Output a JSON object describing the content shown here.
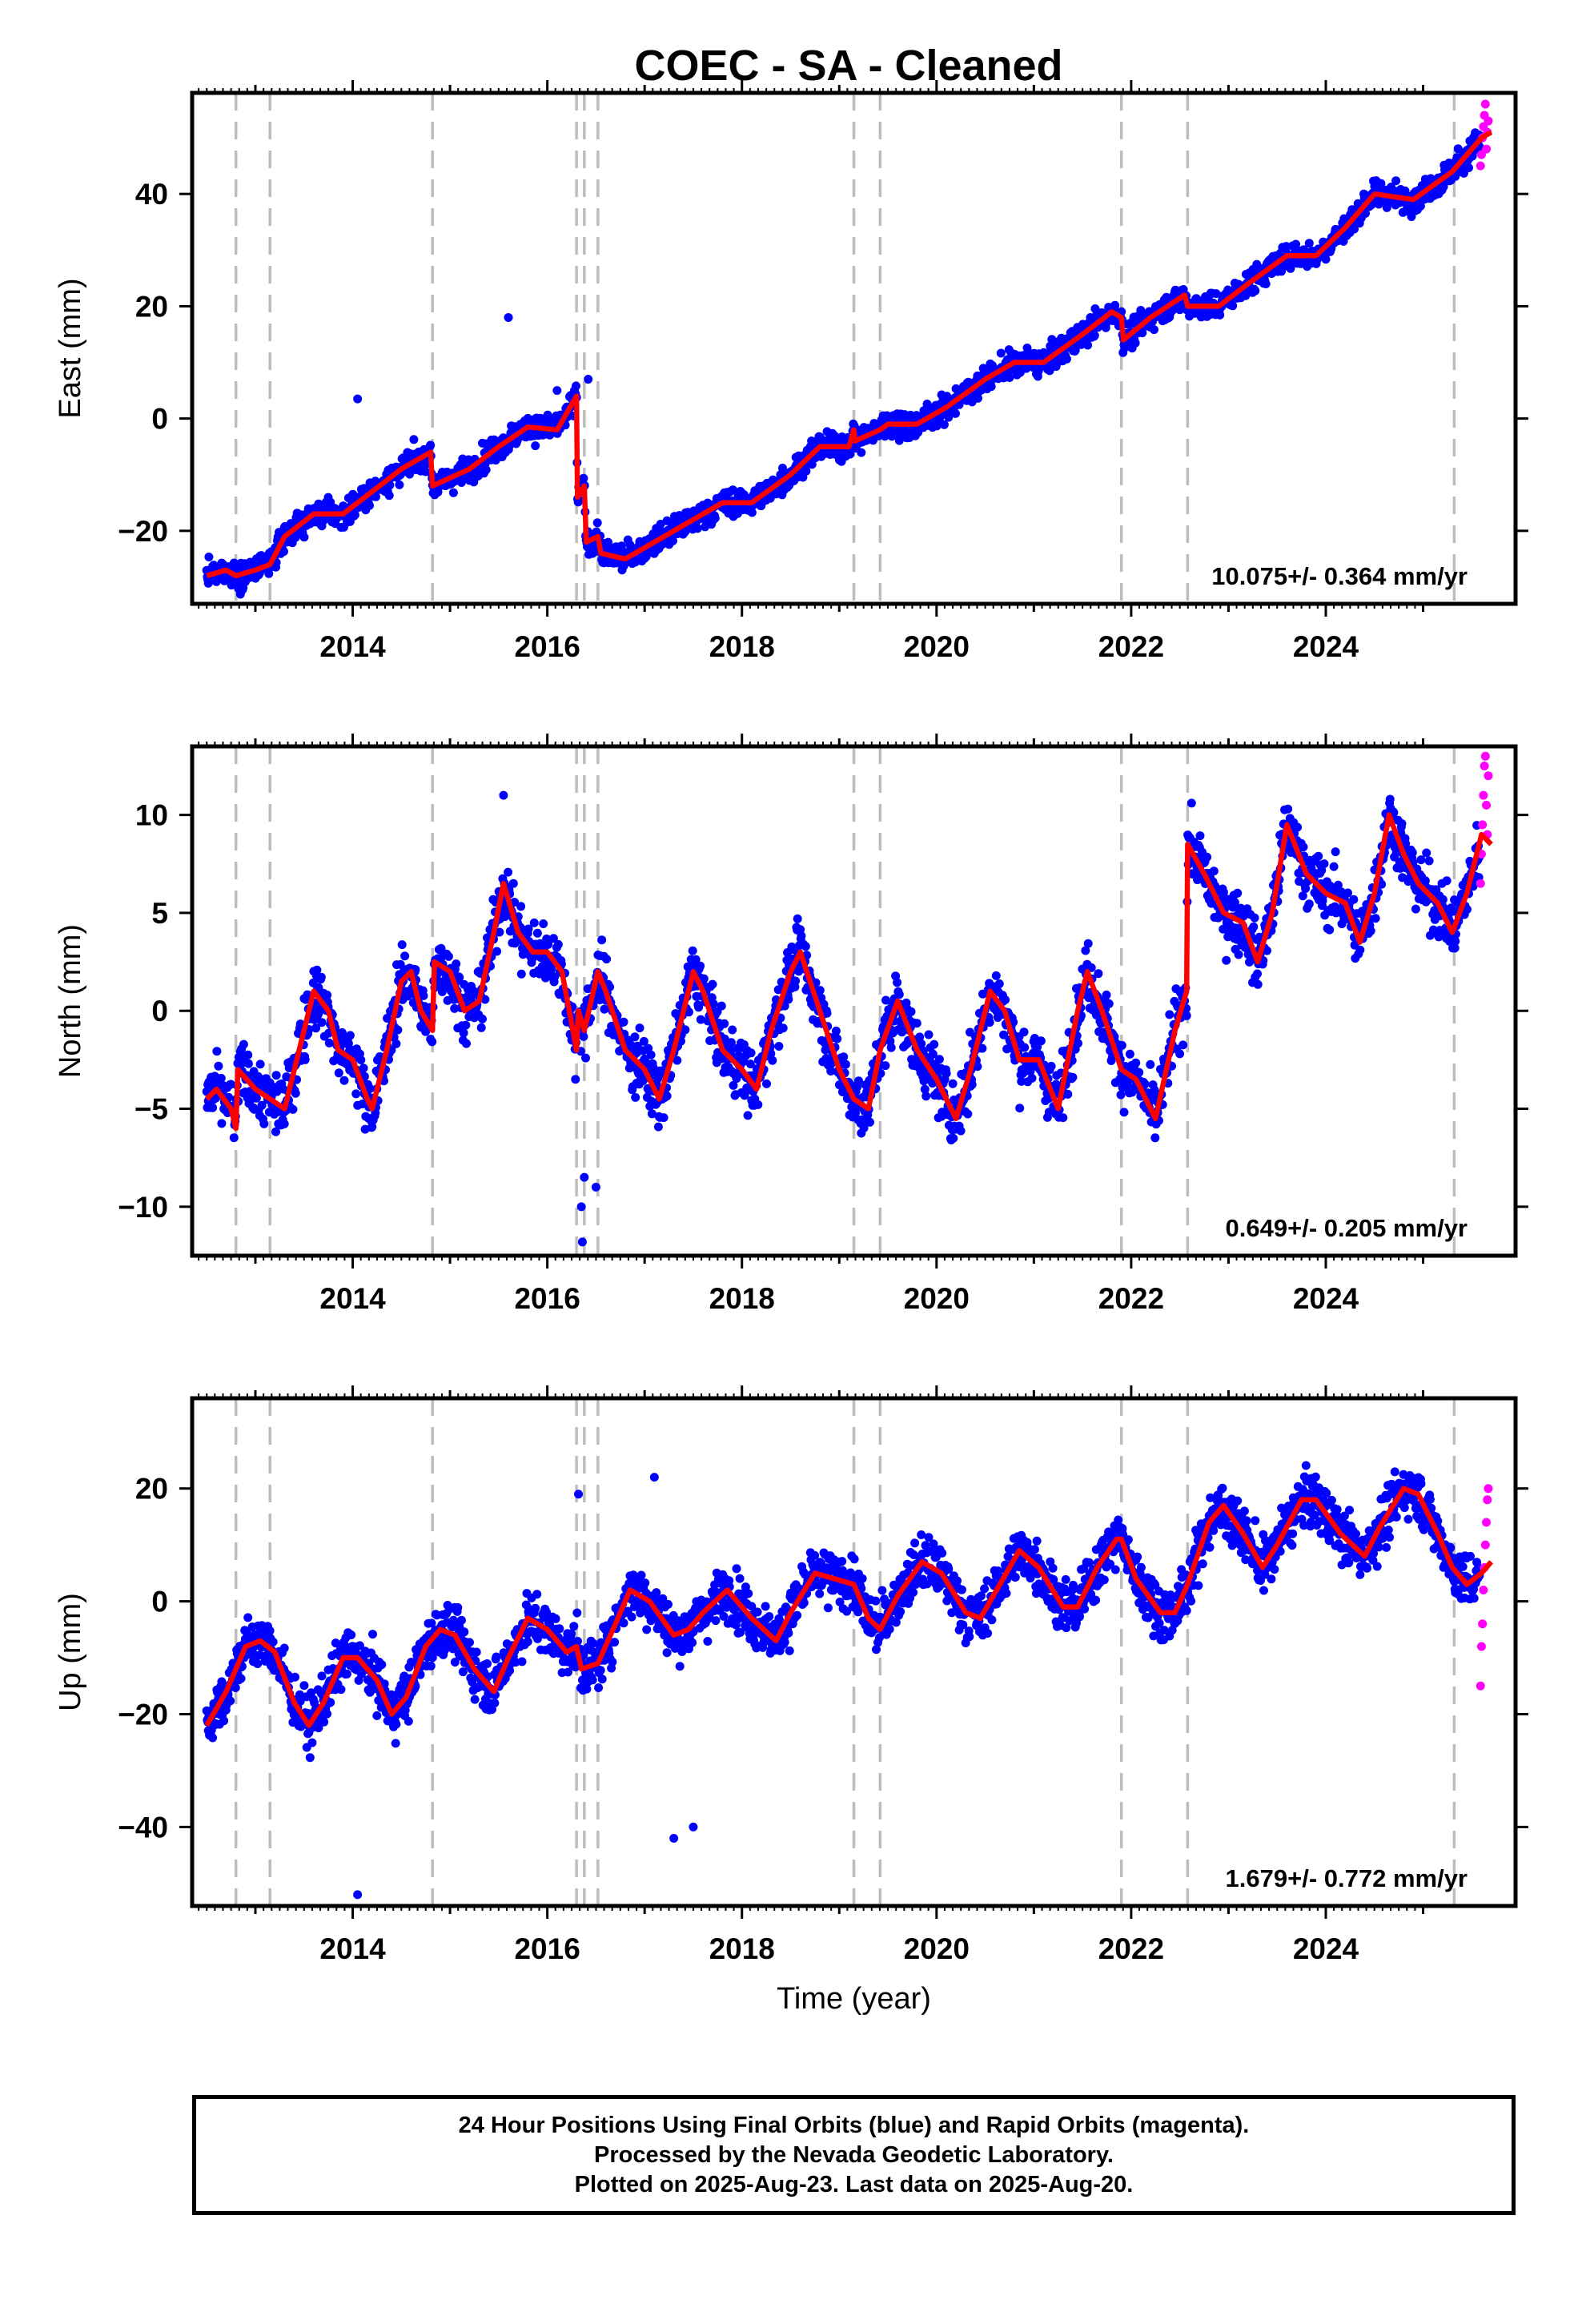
{
  "title": "COEC  - SA - Cleaned",
  "colors": {
    "final": "#0000ff",
    "rapid": "#ff00ff",
    "model": "#ff0000",
    "steps": "#bdbdbd"
  },
  "chart_data": [
    {
      "type": "scatter",
      "component": "East",
      "ylabel": "East (mm)",
      "xlabel": "",
      "xlim": [
        2012.35,
        2025.95
      ],
      "ylim": [
        -33,
        58
      ],
      "xticks": [
        2014,
        2016,
        2018,
        2020,
        2022,
        2024
      ],
      "yticks": [
        -20,
        0,
        20,
        40
      ],
      "rate_label": "10.075+/- 0.364 mm/yr",
      "step_epochs": [
        2012.8,
        2013.15,
        2014.82,
        2016.3,
        2016.38,
        2016.52,
        2019.15,
        2019.42,
        2021.9,
        2022.58,
        2025.32
      ],
      "model": [
        [
          2012.5,
          -28
        ],
        [
          2012.7,
          -27
        ],
        [
          2012.8,
          -28
        ],
        [
          2013.0,
          -27
        ],
        [
          2013.15,
          -26
        ],
        [
          2013.3,
          -21
        ],
        [
          2013.6,
          -17
        ],
        [
          2013.9,
          -17
        ],
        [
          2014.2,
          -13
        ],
        [
          2014.5,
          -9
        ],
        [
          2014.8,
          -6
        ],
        [
          2014.82,
          -12
        ],
        [
          2015.2,
          -9
        ],
        [
          2015.5,
          -5
        ],
        [
          2015.8,
          -1.5
        ],
        [
          2016.1,
          -2
        ],
        [
          2016.3,
          4
        ],
        [
          2016.31,
          -14
        ],
        [
          2016.38,
          -12
        ],
        [
          2016.4,
          -22
        ],
        [
          2016.52,
          -21
        ],
        [
          2016.55,
          -24
        ],
        [
          2016.8,
          -25
        ],
        [
          2017.1,
          -22
        ],
        [
          2017.5,
          -18
        ],
        [
          2017.8,
          -15
        ],
        [
          2018.1,
          -15
        ],
        [
          2018.5,
          -10
        ],
        [
          2018.8,
          -5
        ],
        [
          2019.1,
          -5
        ],
        [
          2019.15,
          -2
        ],
        [
          2019.16,
          -4
        ],
        [
          2019.42,
          -2
        ],
        [
          2019.5,
          -1
        ],
        [
          2019.8,
          -1
        ],
        [
          2020.1,
          2
        ],
        [
          2020.5,
          7
        ],
        [
          2020.8,
          10
        ],
        [
          2021.1,
          10
        ],
        [
          2021.5,
          15
        ],
        [
          2021.8,
          19
        ],
        [
          2021.9,
          18
        ],
        [
          2021.92,
          14
        ],
        [
          2022.2,
          18
        ],
        [
          2022.55,
          22
        ],
        [
          2022.58,
          20
        ],
        [
          2022.9,
          20
        ],
        [
          2023.2,
          24
        ],
        [
          2023.6,
          29
        ],
        [
          2023.9,
          29
        ],
        [
          2024.2,
          34
        ],
        [
          2024.5,
          40
        ],
        [
          2024.9,
          39
        ],
        [
          2025.3,
          44
        ],
        [
          2025.6,
          50
        ],
        [
          2025.7,
          51
        ]
      ],
      "outliers": [
        [
          2014.05,
          3.5
        ],
        [
          2015.6,
          18
        ],
        [
          2016.1,
          5
        ],
        [
          2016.42,
          7
        ]
      ],
      "rapid": [
        [
          2025.59,
          45
        ],
        [
          2025.6,
          47
        ],
        [
          2025.61,
          50
        ],
        [
          2025.62,
          52
        ],
        [
          2025.63,
          54
        ],
        [
          2025.64,
          56
        ],
        [
          2025.65,
          48
        ],
        [
          2025.66,
          51
        ],
        [
          2025.67,
          53
        ]
      ]
    },
    {
      "type": "scatter",
      "component": "North",
      "ylabel": "North (mm)",
      "xlabel": "",
      "xlim": [
        2012.35,
        2025.95
      ],
      "ylim": [
        -12.5,
        13.5
      ],
      "xticks": [
        2014,
        2016,
        2018,
        2020,
        2022,
        2024
      ],
      "yticks": [
        -10,
        -5,
        0,
        5,
        10
      ],
      "rate_label": "0.649+/- 0.205 mm/yr",
      "step_epochs": [
        2012.8,
        2013.15,
        2014.82,
        2016.3,
        2016.38,
        2016.52,
        2019.15,
        2019.42,
        2021.9,
        2022.58,
        2025.32
      ],
      "model": [
        [
          2012.5,
          -4.5
        ],
        [
          2012.6,
          -4
        ],
        [
          2012.75,
          -5
        ],
        [
          2012.8,
          -6
        ],
        [
          2012.82,
          -3
        ],
        [
          2013.0,
          -4
        ],
        [
          2013.15,
          -4.5
        ],
        [
          2013.3,
          -5
        ],
        [
          2013.45,
          -2
        ],
        [
          2013.6,
          1
        ],
        [
          2013.75,
          0
        ],
        [
          2013.85,
          -2
        ],
        [
          2014.0,
          -2.5
        ],
        [
          2014.15,
          -4.5
        ],
        [
          2014.2,
          -5
        ],
        [
          2014.35,
          -2
        ],
        [
          2014.5,
          1.5
        ],
        [
          2014.6,
          2
        ],
        [
          2014.7,
          0
        ],
        [
          2014.82,
          -1
        ],
        [
          2014.84,
          2.5
        ],
        [
          2015.0,
          2
        ],
        [
          2015.15,
          0
        ],
        [
          2015.3,
          0.5
        ],
        [
          2015.45,
          4
        ],
        [
          2015.55,
          6.5
        ],
        [
          2015.7,
          4
        ],
        [
          2015.85,
          3
        ],
        [
          2016.0,
          3
        ],
        [
          2016.15,
          2
        ],
        [
          2016.3,
          -2
        ],
        [
          2016.32,
          0
        ],
        [
          2016.38,
          -1
        ],
        [
          2016.52,
          2
        ],
        [
          2016.6,
          1
        ],
        [
          2016.8,
          -2
        ],
        [
          2017.0,
          -3
        ],
        [
          2017.15,
          -4.5
        ],
        [
          2017.3,
          -2
        ],
        [
          2017.5,
          2
        ],
        [
          2017.6,
          1
        ],
        [
          2017.8,
          -2
        ],
        [
          2018.0,
          -3
        ],
        [
          2018.15,
          -4
        ],
        [
          2018.3,
          -1
        ],
        [
          2018.5,
          2
        ],
        [
          2018.6,
          3
        ],
        [
          2018.8,
          0
        ],
        [
          2019.0,
          -3
        ],
        [
          2019.15,
          -4.5
        ],
        [
          2019.3,
          -5
        ],
        [
          2019.42,
          -2
        ],
        [
          2019.6,
          0.5
        ],
        [
          2019.8,
          -2
        ],
        [
          2020.0,
          -3.5
        ],
        [
          2020.2,
          -5.5
        ],
        [
          2020.35,
          -3
        ],
        [
          2020.55,
          1
        ],
        [
          2020.7,
          0
        ],
        [
          2020.85,
          -2.5
        ],
        [
          2021.05,
          -2.5
        ],
        [
          2021.25,
          -5
        ],
        [
          2021.45,
          0
        ],
        [
          2021.55,
          2
        ],
        [
          2021.7,
          0
        ],
        [
          2021.9,
          -3
        ],
        [
          2022.05,
          -3.5
        ],
        [
          2022.25,
          -5.5
        ],
        [
          2022.45,
          -1
        ],
        [
          2022.57,
          1
        ],
        [
          2022.58,
          8.5
        ],
        [
          2022.75,
          7
        ],
        [
          2022.95,
          5
        ],
        [
          2023.15,
          4.5
        ],
        [
          2023.3,
          2.5
        ],
        [
          2023.45,
          5
        ],
        [
          2023.6,
          9.5
        ],
        [
          2023.8,
          7
        ],
        [
          2024.0,
          6
        ],
        [
          2024.2,
          5.5
        ],
        [
          2024.35,
          3.5
        ],
        [
          2024.5,
          6
        ],
        [
          2024.65,
          10
        ],
        [
          2024.8,
          8
        ],
        [
          2024.95,
          6.5
        ],
        [
          2025.15,
          5.5
        ],
        [
          2025.3,
          4
        ],
        [
          2025.45,
          6
        ],
        [
          2025.6,
          9
        ],
        [
          2025.7,
          8.5
        ]
      ],
      "outliers": [
        [
          2016.35,
          -10
        ],
        [
          2016.36,
          -11.8
        ],
        [
          2016.38,
          -8.5
        ],
        [
          2015.55,
          11
        ],
        [
          2016.5,
          -9
        ]
      ],
      "rapid": [
        [
          2025.59,
          6.5
        ],
        [
          2025.6,
          8
        ],
        [
          2025.61,
          9.5
        ],
        [
          2025.62,
          11
        ],
        [
          2025.63,
          12.5
        ],
        [
          2025.64,
          13
        ],
        [
          2025.65,
          10.5
        ],
        [
          2025.66,
          9
        ],
        [
          2025.67,
          12
        ]
      ]
    },
    {
      "type": "scatter",
      "component": "Up",
      "ylabel": "Up (mm)",
      "xlabel": "Time (year)",
      "xlim": [
        2012.35,
        2025.95
      ],
      "ylim": [
        -54,
        36
      ],
      "xticks": [
        2014,
        2016,
        2018,
        2020,
        2022,
        2024
      ],
      "yticks": [
        -40,
        -20,
        0,
        20
      ],
      "rate_label": "1.679+/- 0.772 mm/yr",
      "step_epochs": [
        2012.8,
        2013.15,
        2014.82,
        2016.3,
        2016.38,
        2016.52,
        2019.15,
        2019.42,
        2021.9,
        2022.58,
        2025.32
      ],
      "model": [
        [
          2012.5,
          -22
        ],
        [
          2012.7,
          -16
        ],
        [
          2012.9,
          -8
        ],
        [
          2013.05,
          -7
        ],
        [
          2013.2,
          -9
        ],
        [
          2013.4,
          -18
        ],
        [
          2013.55,
          -22
        ],
        [
          2013.7,
          -18
        ],
        [
          2013.9,
          -10
        ],
        [
          2014.05,
          -10
        ],
        [
          2014.25,
          -14
        ],
        [
          2014.4,
          -20
        ],
        [
          2014.55,
          -17
        ],
        [
          2014.75,
          -8
        ],
        [
          2014.9,
          -5
        ],
        [
          2015.05,
          -6
        ],
        [
          2015.25,
          -12
        ],
        [
          2015.45,
          -16
        ],
        [
          2015.6,
          -10
        ],
        [
          2015.8,
          -3
        ],
        [
          2016.0,
          -5
        ],
        [
          2016.2,
          -9
        ],
        [
          2016.3,
          -8
        ],
        [
          2016.35,
          -12
        ],
        [
          2016.52,
          -11
        ],
        [
          2016.7,
          -4
        ],
        [
          2016.85,
          2
        ],
        [
          2017.05,
          0
        ],
        [
          2017.3,
          -6
        ],
        [
          2017.45,
          -5
        ],
        [
          2017.6,
          -2
        ],
        [
          2017.85,
          2
        ],
        [
          2018.1,
          -3
        ],
        [
          2018.35,
          -7
        ],
        [
          2018.5,
          -2
        ],
        [
          2018.75,
          5
        ],
        [
          2018.95,
          4
        ],
        [
          2019.15,
          3
        ],
        [
          2019.3,
          -3
        ],
        [
          2019.42,
          -5
        ],
        [
          2019.6,
          1
        ],
        [
          2019.85,
          7
        ],
        [
          2020.05,
          5
        ],
        [
          2020.3,
          -2
        ],
        [
          2020.45,
          -3
        ],
        [
          2020.65,
          3
        ],
        [
          2020.85,
          9
        ],
        [
          2021.05,
          6
        ],
        [
          2021.3,
          -1
        ],
        [
          2021.45,
          -1
        ],
        [
          2021.65,
          6
        ],
        [
          2021.85,
          11
        ],
        [
          2021.9,
          11
        ],
        [
          2022.05,
          4
        ],
        [
          2022.3,
          -2
        ],
        [
          2022.45,
          -2
        ],
        [
          2022.58,
          3
        ],
        [
          2022.8,
          14
        ],
        [
          2022.95,
          17
        ],
        [
          2023.15,
          12
        ],
        [
          2023.35,
          6
        ],
        [
          2023.5,
          10
        ],
        [
          2023.75,
          18
        ],
        [
          2023.9,
          18
        ],
        [
          2024.15,
          12
        ],
        [
          2024.4,
          8
        ],
        [
          2024.55,
          13
        ],
        [
          2024.8,
          20
        ],
        [
          2024.95,
          19
        ],
        [
          2025.15,
          12
        ],
        [
          2025.3,
          6
        ],
        [
          2025.45,
          3
        ],
        [
          2025.6,
          5
        ],
        [
          2025.7,
          7
        ]
      ],
      "outliers": [
        [
          2014.05,
          -52
        ],
        [
          2016.32,
          19
        ],
        [
          2017.3,
          -42
        ],
        [
          2017.5,
          -40
        ],
        [
          2017.1,
          22
        ]
      ],
      "rapid": [
        [
          2025.59,
          -15
        ],
        [
          2025.6,
          -8
        ],
        [
          2025.61,
          -4
        ],
        [
          2025.62,
          2
        ],
        [
          2025.63,
          6
        ],
        [
          2025.64,
          10
        ],
        [
          2025.65,
          14
        ],
        [
          2025.66,
          18
        ],
        [
          2025.67,
          20
        ]
      ]
    }
  ],
  "caption": {
    "line1": "24 Hour Positions Using Final Orbits (blue) and Rapid Orbits (magenta).",
    "line2": "Processed by the Nevada Geodetic Laboratory.",
    "line3": "Plotted on 2025-Aug-23. Last data on 2025-Aug-20."
  }
}
